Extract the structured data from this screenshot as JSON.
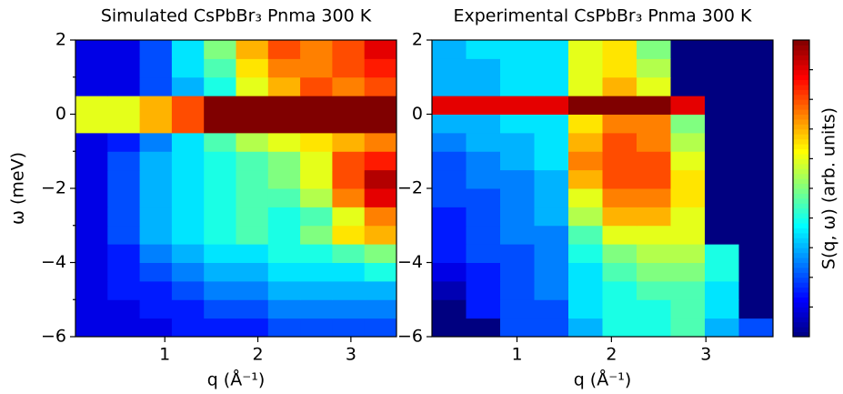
{
  "chart_data": [
    {
      "type": "heatmap",
      "title": "Simulated CsPbBr₃ Pnma 300 K",
      "xlabel": "q (Å⁻¹)",
      "ylabel": "ω (meV)",
      "colormap": "jet",
      "xlim": [
        0.04,
        3.49
      ],
      "ylim": [
        -6,
        2
      ],
      "xticks": [
        1,
        2,
        3
      ],
      "yticks": [
        2,
        0,
        {
          "value": -2,
          "label": "−2"
        },
        {
          "value": -4,
          "label": "−4"
        },
        {
          "value": -6,
          "label": "−6"
        }
      ],
      "yminorticks": [
        1,
        -1,
        -3,
        -5
      ],
      "xbins": [
        0.04,
        0.385,
        0.73,
        1.075,
        1.42,
        1.765,
        2.11,
        2.455,
        2.8,
        3.145,
        3.49
      ],
      "ybins": [
        -6,
        -5.5,
        -5,
        -4.5,
        -4,
        -3.5,
        -3,
        -2.5,
        -2,
        -1.5,
        -1,
        -0.5,
        0,
        0.5,
        1,
        1.5,
        2
      ],
      "z": [
        [
          0.1,
          0.1,
          0.1,
          0.15,
          0.15,
          0.15,
          0.2,
          0.2,
          0.2,
          0.2
        ],
        [
          0.1,
          0.1,
          0.15,
          0.15,
          0.2,
          0.2,
          0.25,
          0.25,
          0.25,
          0.25
        ],
        [
          0.1,
          0.15,
          0.15,
          0.2,
          0.25,
          0.25,
          0.3,
          0.3,
          0.3,
          0.3
        ],
        [
          0.1,
          0.15,
          0.2,
          0.25,
          0.3,
          0.3,
          0.35,
          0.35,
          0.35,
          0.4
        ],
        [
          0.1,
          0.15,
          0.25,
          0.3,
          0.35,
          0.35,
          0.4,
          0.4,
          0.45,
          0.5
        ],
        [
          0.1,
          0.2,
          0.3,
          0.35,
          0.4,
          0.45,
          0.4,
          0.5,
          0.65,
          0.7
        ],
        [
          0.1,
          0.2,
          0.3,
          0.35,
          0.4,
          0.45,
          0.4,
          0.45,
          0.6,
          0.75
        ],
        [
          0.1,
          0.2,
          0.3,
          0.35,
          0.4,
          0.45,
          0.45,
          0.55,
          0.75,
          0.9
        ],
        [
          0.1,
          0.2,
          0.3,
          0.35,
          0.4,
          0.45,
          0.5,
          0.6,
          0.8,
          0.95
        ],
        [
          0.1,
          0.2,
          0.3,
          0.35,
          0.4,
          0.45,
          0.5,
          0.6,
          0.8,
          0.85
        ],
        [
          0.1,
          0.15,
          0.25,
          0.35,
          0.45,
          0.55,
          0.6,
          0.65,
          0.7,
          0.75
        ],
        [
          0.6,
          0.6,
          0.7,
          0.8,
          1,
          1,
          1,
          1,
          1,
          1
        ],
        [
          0.6,
          0.6,
          0.7,
          0.8,
          1,
          1,
          1,
          1,
          1,
          1
        ],
        [
          0.1,
          0.1,
          0.2,
          0.3,
          0.4,
          0.6,
          0.7,
          0.8,
          0.75,
          0.8
        ],
        [
          0.1,
          0.1,
          0.2,
          0.35,
          0.45,
          0.65,
          0.75,
          0.75,
          0.8,
          0.85
        ],
        [
          0.1,
          0.1,
          0.2,
          0.35,
          0.5,
          0.7,
          0.8,
          0.75,
          0.8,
          0.9
        ]
      ]
    },
    {
      "type": "heatmap",
      "title": "Experimental CsPbBr₃ Pnma 300 K",
      "xlabel": "q (Å⁻¹)",
      "colormap": "jet",
      "xlim": [
        0.1,
        3.71
      ],
      "ylim": [
        -6,
        2
      ],
      "xticks": [
        1,
        2,
        3
      ],
      "yticks": [
        2,
        0,
        {
          "value": -2,
          "label": "−2"
        },
        {
          "value": -4,
          "label": "−4"
        },
        {
          "value": -6,
          "label": "−6"
        }
      ],
      "xbins": [
        0.1,
        0.461,
        0.822,
        1.183,
        1.544,
        1.905,
        2.266,
        2.627,
        2.988,
        3.349,
        3.71
      ],
      "ybins": [
        -6,
        -5.5,
        -5,
        -4.5,
        -4,
        -3.5,
        -3,
        -2.5,
        -2,
        -1.5,
        -1,
        -0.5,
        0,
        0.5,
        1,
        1.5,
        2
      ],
      "z": [
        [
          0,
          0,
          0.2,
          0.2,
          0.3,
          0.4,
          0.4,
          0.45,
          0.3,
          0.2
        ],
        [
          0,
          0.15,
          0.2,
          0.2,
          0.35,
          0.4,
          0.4,
          0.45,
          0.35,
          0
        ],
        [
          0.05,
          0.15,
          0.2,
          0.25,
          0.35,
          0.4,
          0.45,
          0.45,
          0.35,
          0
        ],
        [
          0.1,
          0.15,
          0.2,
          0.25,
          0.35,
          0.45,
          0.5,
          0.5,
          0.4,
          0
        ],
        [
          0.15,
          0.2,
          0.2,
          0.25,
          0.4,
          0.5,
          0.55,
          0.55,
          0.4,
          0
        ],
        [
          0.15,
          0.2,
          0.25,
          0.25,
          0.45,
          0.6,
          0.6,
          0.6,
          0,
          0
        ],
        [
          0.15,
          0.2,
          0.25,
          0.3,
          0.55,
          0.7,
          0.7,
          0.6,
          0,
          0
        ],
        [
          0.2,
          0.2,
          0.25,
          0.3,
          0.6,
          0.75,
          0.75,
          0.65,
          0,
          0
        ],
        [
          0.2,
          0.25,
          0.25,
          0.3,
          0.7,
          0.8,
          0.8,
          0.65,
          0,
          0
        ],
        [
          0.2,
          0.25,
          0.3,
          0.35,
          0.75,
          0.8,
          0.8,
          0.6,
          0,
          0
        ],
        [
          0.25,
          0.3,
          0.3,
          0.35,
          0.7,
          0.8,
          0.75,
          0.55,
          0,
          0
        ],
        [
          0.3,
          0.3,
          0.35,
          0.35,
          0.65,
          0.75,
          0.75,
          0.5,
          0,
          0
        ],
        [
          0.9,
          0.9,
          0.9,
          0.9,
          1,
          1,
          1,
          0.9,
          0,
          0
        ],
        [
          0.3,
          0.3,
          0.35,
          0.35,
          0.6,
          0.7,
          0.6,
          0,
          0,
          0
        ],
        [
          0.3,
          0.3,
          0.35,
          0.35,
          0.6,
          0.65,
          0.55,
          0,
          0,
          0
        ],
        [
          0.3,
          0.35,
          0.35,
          0.35,
          0.6,
          0.65,
          0.5,
          0,
          0,
          0
        ]
      ],
      "colorbar": {
        "label": "S(q, ω) (arb. units)",
        "zlim": [
          0,
          1
        ],
        "ticks": [
          0.1,
          0.2,
          0.3,
          0.4,
          0.5,
          0.6,
          0.7,
          0.8,
          0.9
        ]
      }
    }
  ]
}
